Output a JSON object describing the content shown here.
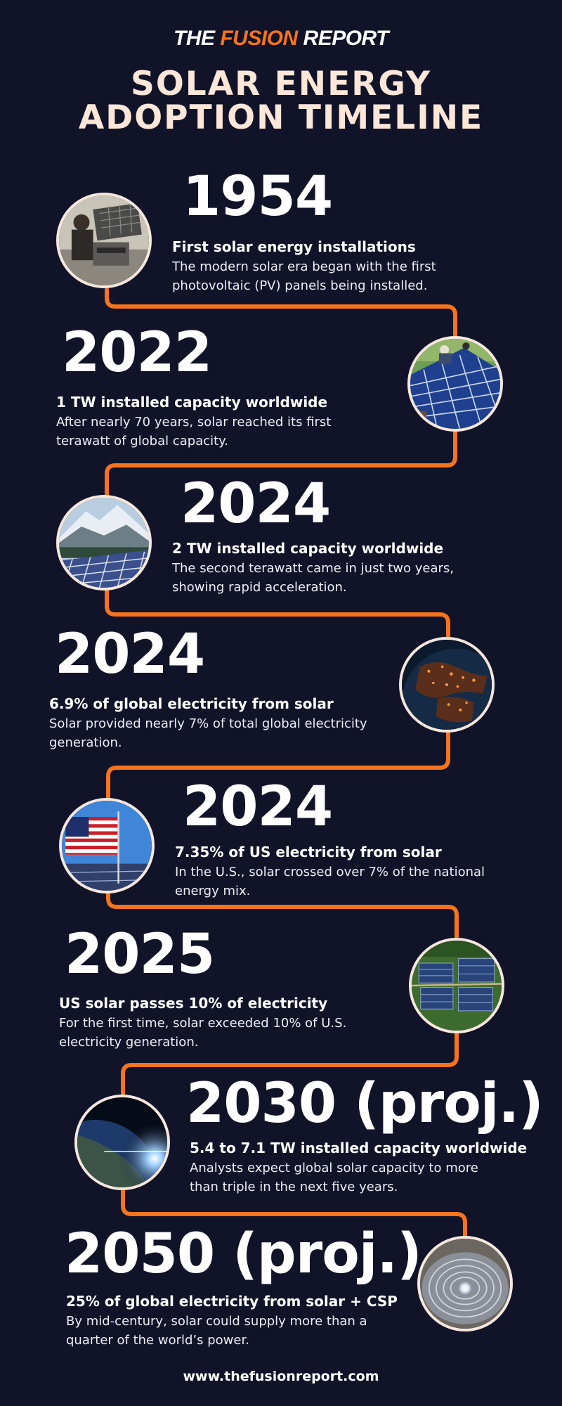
{
  "header": {
    "brand_prefix": "THE ",
    "brand_accent": "FUSION",
    "brand_suffix": " REPORT",
    "title_line1": "SOLAR ENERGY",
    "title_line2": "ADOPTION TIMELINE"
  },
  "colors": {
    "background": "#111429",
    "accent": "#f7731c",
    "title": "#fbe6d8",
    "circle_border": "#f6e7dd"
  },
  "milestones": [
    {
      "year": "1954",
      "heading": "First solar energy installations",
      "desc": "The modern solar era began with the first photovoltaic (PV) panels being installed.",
      "image": "vintage-solar-panel-photo"
    },
    {
      "year": "2022",
      "heading": "1 TW installed capacity worldwide",
      "desc": "After nearly 70 years, solar reached its first terawatt of global capacity.",
      "image": "rooftop-solar-installers-photo"
    },
    {
      "year": "2024",
      "heading": "2 TW installed capacity worldwide",
      "desc": "The second terawatt came in just two years, showing rapid acceleration.",
      "image": "solar-panels-mountain-photo"
    },
    {
      "year": "2024",
      "heading": "6.9% of global electricity from solar",
      "desc": "Solar provided nearly 7% of total global electricity generation.",
      "image": "earth-city-lights-photo"
    },
    {
      "year": "2024",
      "heading": "7.35% of US electricity from solar",
      "desc": "In the U.S., solar crossed over 7% of the national energy mix.",
      "image": "us-flag-solar-farm-photo"
    },
    {
      "year": "2025",
      "heading": "US solar passes 10% of electricity",
      "desc": "For the first time, solar exceeded 10% of U.S. electricity generation.",
      "image": "aerial-solar-farm-photo"
    },
    {
      "year": "2030 (proj.)",
      "heading": "5.4 to 7.1 TW installed capacity worldwide",
      "desc": "Analysts expect global solar capacity to more than triple in the next five years.",
      "image": "earth-sunrise-space-photo"
    },
    {
      "year": "2050 (proj.)",
      "heading": "25% of global electricity from solar + CSP",
      "desc": "By mid-century, solar could supply more than a quarter of the world’s power.",
      "image": "csp-solar-tower-field-photo"
    }
  ],
  "footer": {
    "url": "www.thefusionreport.com"
  }
}
